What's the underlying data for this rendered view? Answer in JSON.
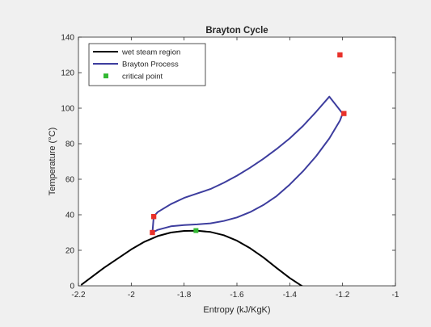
{
  "chart_data": {
    "type": "line",
    "title": "Brayton Cycle",
    "xlabel": "Entropy (kJ/KgK)",
    "ylabel": "Temperature (°C)",
    "xlim": [
      -2.2,
      -1
    ],
    "ylim": [
      0,
      140
    ],
    "xticks": [
      -2.2,
      -2,
      -1.8,
      -1.6,
      -1.4,
      -1.2,
      -1
    ],
    "xtick_labels": [
      "-2.2",
      "-2",
      "-1.8",
      "-1.6",
      "-1.4",
      "-1.2",
      "-1"
    ],
    "yticks": [
      0,
      20,
      40,
      60,
      80,
      100,
      120,
      140
    ],
    "ytick_labels": [
      "0",
      "20",
      "40",
      "60",
      "80",
      "100",
      "120",
      "140"
    ],
    "grid": false,
    "legend_position": "top-left",
    "series": [
      {
        "name": "wet steam region",
        "color": "#000000",
        "x": [
          -2.19,
          -2.1,
          -2.0,
          -1.95,
          -1.9,
          -1.85,
          -1.8,
          -1.75,
          -1.7,
          -1.65,
          -1.6,
          -1.55,
          -1.5,
          -1.45,
          -1.4,
          -1.35
        ],
        "y": [
          0.5,
          10.5,
          20.5,
          24.8,
          28.0,
          30.0,
          30.9,
          31.0,
          30.3,
          28.5,
          25.4,
          21.2,
          16.0,
          10.1,
          4.4,
          -0.5
        ]
      },
      {
        "name": "Brayton Process",
        "color": "#3d3d9e",
        "x": [
          -1.92,
          -1.9,
          -1.85,
          -1.8,
          -1.75,
          -1.7,
          -1.65,
          -1.6,
          -1.55,
          -1.5,
          -1.45,
          -1.4,
          -1.35,
          -1.3,
          -1.25,
          -1.21,
          -1.2,
          -1.25,
          -1.3,
          -1.35,
          -1.4,
          -1.45,
          -1.5,
          -1.55,
          -1.6,
          -1.65,
          -1.7,
          -1.75,
          -1.8,
          -1.85,
          -1.9,
          -1.915,
          -1.92
        ],
        "y": [
          30,
          31.5,
          33.5,
          34.2,
          34.6,
          35.2,
          36.5,
          38.5,
          41.5,
          45.5,
          50.5,
          57,
          64.5,
          73,
          83,
          93,
          97,
          106.5,
          98,
          90,
          83,
          77,
          71.5,
          66.5,
          62,
          58,
          54.5,
          52,
          49.5,
          46,
          41.5,
          39,
          30
        ]
      },
      {
        "name": "critical point",
        "color": "#33b833",
        "marker": "square",
        "x": [
          -1.755
        ],
        "y": [
          31.1
        ]
      }
    ],
    "state_points": {
      "color": "#e8312a",
      "x": [
        -1.92,
        -1.915,
        -1.21,
        -1.195
      ],
      "y": [
        30,
        39,
        130,
        97
      ]
    }
  }
}
